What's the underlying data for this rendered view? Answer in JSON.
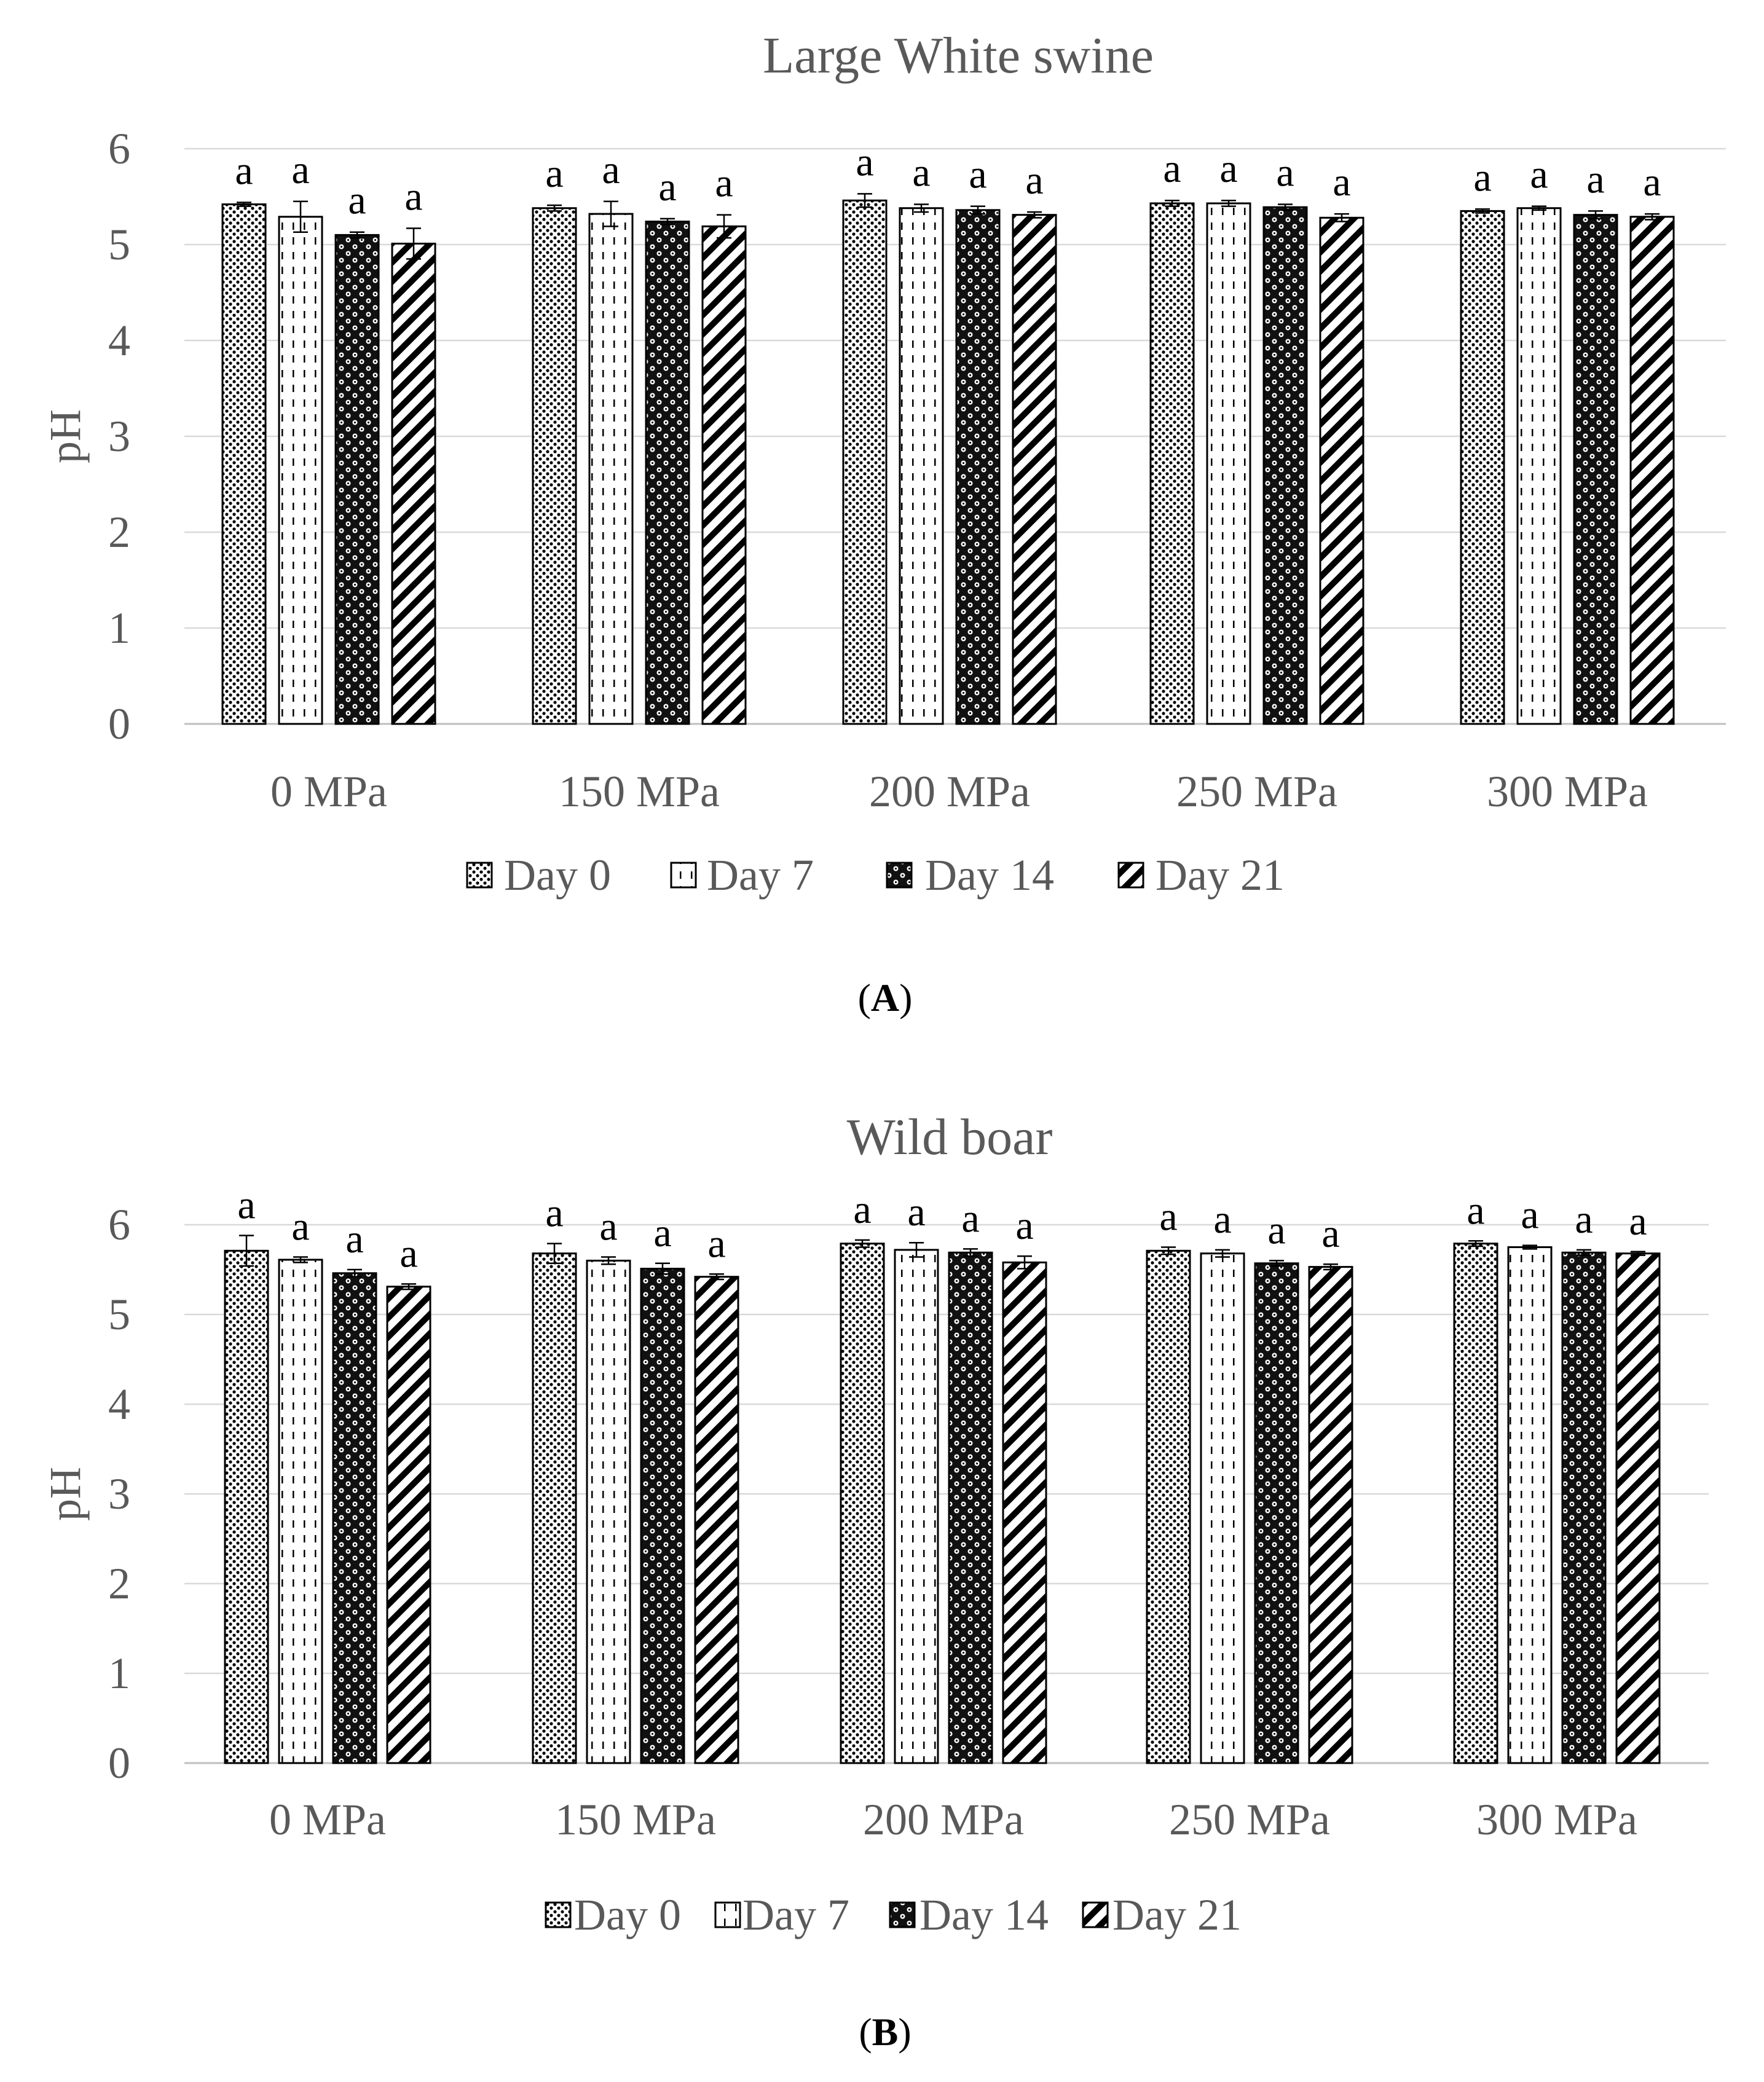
{
  "colors": {
    "grid": "#d9d9d9",
    "axis": "#bfbfbf",
    "text": "#595959",
    "bar_stroke": "#000000",
    "error_bar": "#000000"
  },
  "legend_patterns": [
    "dots",
    "dashes",
    "circles",
    "diagonal"
  ],
  "chart_data": [
    {
      "type": "bar",
      "title": "Large White swine",
      "ylabel": "pH",
      "xlabel": "",
      "ylim": [
        0,
        6
      ],
      "yticks": [
        0,
        1,
        2,
        3,
        4,
        5,
        6
      ],
      "grid": true,
      "legend_position": "bottom",
      "panel_label_open": "(",
      "panel_label": "A",
      "panel_label_close": ")",
      "categories": [
        "0 MPa",
        "150 MPa",
        "200 MPa",
        "250 MPa",
        "300 MPa"
      ],
      "series": [
        {
          "name": "Day 0",
          "values": [
            5.42,
            5.38,
            5.46,
            5.43,
            5.35
          ],
          "errors": [
            0.02,
            0.03,
            0.07,
            0.03,
            0.02
          ],
          "labels": [
            "a",
            "a",
            "a",
            "a",
            "a"
          ]
        },
        {
          "name": "Day 7",
          "values": [
            5.29,
            5.32,
            5.38,
            5.43,
            5.38
          ],
          "errors": [
            0.16,
            0.13,
            0.04,
            0.03,
            0.02
          ],
          "labels": [
            "a",
            "a",
            "a",
            "a",
            "a"
          ]
        },
        {
          "name": "Day 14",
          "values": [
            5.1,
            5.24,
            5.36,
            5.39,
            5.31
          ],
          "errors": [
            0.03,
            0.03,
            0.04,
            0.03,
            0.04
          ],
          "labels": [
            "a",
            "a",
            "a",
            "a",
            "a"
          ]
        },
        {
          "name": "Day 21",
          "values": [
            5.01,
            5.19,
            5.31,
            5.28,
            5.29
          ],
          "errors": [
            0.16,
            0.12,
            0.03,
            0.04,
            0.03
          ],
          "labels": [
            "a",
            "a",
            "a",
            "a",
            "a"
          ]
        }
      ]
    },
    {
      "type": "bar",
      "title": "Wild boar",
      "ylabel": "pH",
      "xlabel": "",
      "ylim": [
        0,
        6
      ],
      "yticks": [
        0,
        1,
        2,
        3,
        4,
        5,
        6
      ],
      "grid": true,
      "legend_position": "bottom",
      "panel_label_open": "(",
      "panel_label": "B",
      "panel_label_close": ")",
      "categories": [
        "0 MPa",
        "150 MPa",
        "200 MPa",
        "250 MPa",
        "300 MPa"
      ],
      "series": [
        {
          "name": "Day 0",
          "values": [
            5.71,
            5.68,
            5.79,
            5.71,
            5.79
          ],
          "errors": [
            0.17,
            0.11,
            0.04,
            0.04,
            0.03
          ],
          "labels": [
            "a",
            "a",
            "a",
            "a",
            "a"
          ]
        },
        {
          "name": "Day 7",
          "values": [
            5.61,
            5.6,
            5.72,
            5.68,
            5.75
          ],
          "errors": [
            0.03,
            0.04,
            0.08,
            0.04,
            0.02
          ],
          "labels": [
            "a",
            "a",
            "a",
            "a",
            "a"
          ]
        },
        {
          "name": "Day 14",
          "values": [
            5.46,
            5.51,
            5.69,
            5.57,
            5.69
          ],
          "errors": [
            0.04,
            0.06,
            0.04,
            0.03,
            0.03
          ],
          "labels": [
            "a",
            "a",
            "a",
            "a",
            "a"
          ]
        },
        {
          "name": "Day 21",
          "values": [
            5.31,
            5.42,
            5.58,
            5.53,
            5.68
          ],
          "errors": [
            0.03,
            0.03,
            0.07,
            0.03,
            0.02
          ],
          "labels": [
            "a",
            "a",
            "a",
            "a",
            "a"
          ]
        }
      ]
    }
  ]
}
